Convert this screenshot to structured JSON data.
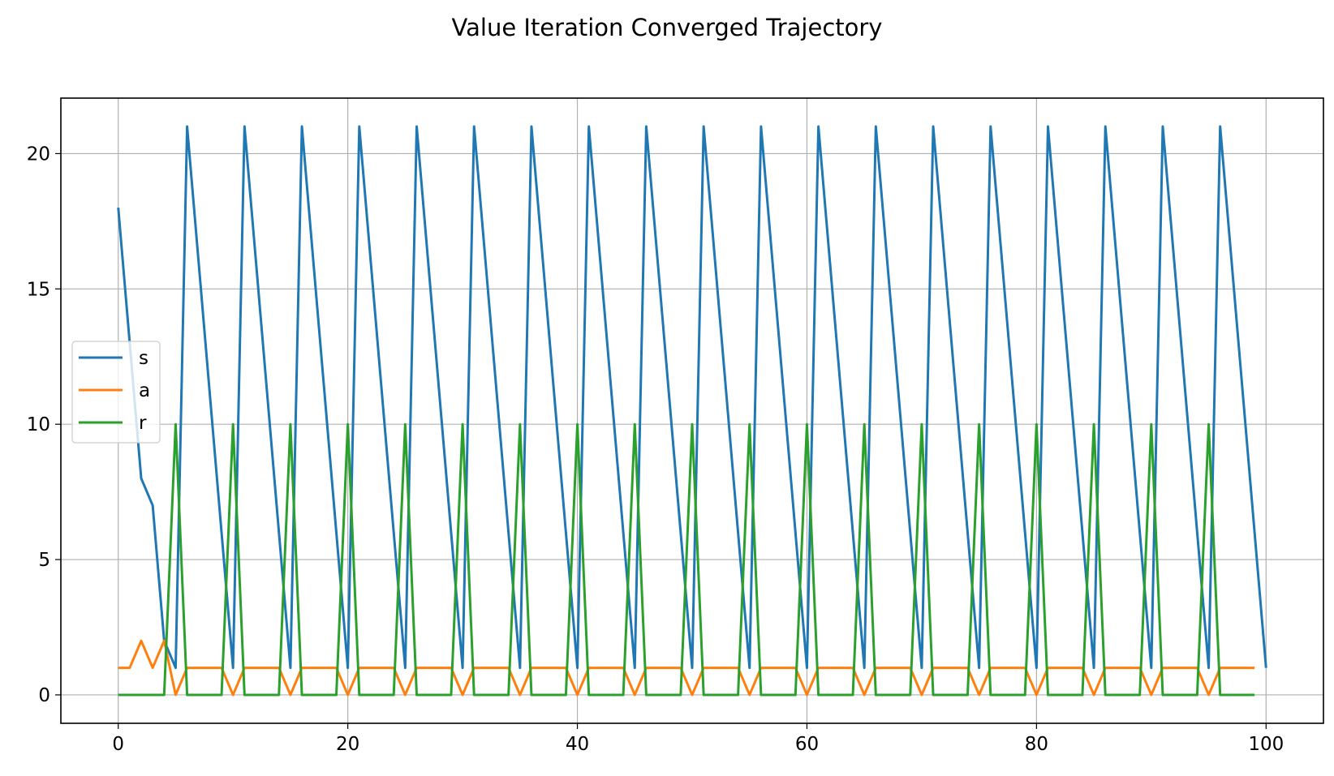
{
  "chart_data": {
    "type": "line",
    "title": "Value Iteration Converged Trajectory",
    "xlabel": "",
    "ylabel": "",
    "xlim": [
      -5,
      105
    ],
    "ylim": [
      -1.05,
      22.05
    ],
    "xticks": [
      0,
      20,
      40,
      60,
      80,
      100
    ],
    "yticks": [
      0,
      5,
      10,
      15,
      20
    ],
    "grid": true,
    "legend_position": "center-left",
    "series": [
      {
        "name": "s",
        "color": "#1f77b4",
        "x": [
          0,
          1,
          2,
          3,
          4,
          5,
          6,
          7,
          8,
          9,
          10,
          11,
          12,
          13,
          14,
          15,
          16,
          17,
          18,
          19,
          20,
          21,
          22,
          23,
          24,
          25,
          26,
          27,
          28,
          29,
          30,
          31,
          32,
          33,
          34,
          35,
          36,
          37,
          38,
          39,
          40,
          41,
          42,
          43,
          44,
          45,
          46,
          47,
          48,
          49,
          50,
          51,
          52,
          53,
          54,
          55,
          56,
          57,
          58,
          59,
          60,
          61,
          62,
          63,
          64,
          65,
          66,
          67,
          68,
          69,
          70,
          71,
          72,
          73,
          74,
          75,
          76,
          77,
          78,
          79,
          80,
          81,
          82,
          83,
          84,
          85,
          86,
          87,
          88,
          89,
          90,
          91,
          92,
          93,
          94,
          95,
          96,
          97,
          98,
          99,
          100
        ],
        "y": [
          18,
          13,
          8,
          7,
          2,
          1,
          21,
          16,
          11,
          6,
          1,
          21,
          16,
          11,
          6,
          1,
          21,
          16,
          11,
          6,
          1,
          21,
          16,
          11,
          6,
          1,
          21,
          16,
          11,
          6,
          1,
          21,
          16,
          11,
          6,
          1,
          21,
          16,
          11,
          6,
          1,
          21,
          16,
          11,
          6,
          1,
          21,
          16,
          11,
          6,
          1,
          21,
          16,
          11,
          6,
          1,
          21,
          16,
          11,
          6,
          1,
          21,
          16,
          11,
          6,
          1,
          21,
          16,
          11,
          6,
          1,
          21,
          16,
          11,
          6,
          1,
          21,
          16,
          11,
          6,
          1,
          21,
          16,
          11,
          6,
          1,
          21,
          16,
          11,
          6,
          1,
          21,
          16,
          11,
          6,
          1,
          21,
          16,
          11,
          6,
          1
        ]
      },
      {
        "name": "a",
        "color": "#ff7f0e",
        "x": [
          0,
          1,
          2,
          3,
          4,
          5,
          6,
          7,
          8,
          9,
          10,
          11,
          12,
          13,
          14,
          15,
          16,
          17,
          18,
          19,
          20,
          21,
          22,
          23,
          24,
          25,
          26,
          27,
          28,
          29,
          30,
          31,
          32,
          33,
          34,
          35,
          36,
          37,
          38,
          39,
          40,
          41,
          42,
          43,
          44,
          45,
          46,
          47,
          48,
          49,
          50,
          51,
          52,
          53,
          54,
          55,
          56,
          57,
          58,
          59,
          60,
          61,
          62,
          63,
          64,
          65,
          66,
          67,
          68,
          69,
          70,
          71,
          72,
          73,
          74,
          75,
          76,
          77,
          78,
          79,
          80,
          81,
          82,
          83,
          84,
          85,
          86,
          87,
          88,
          89,
          90,
          91,
          92,
          93,
          94,
          95,
          96,
          97,
          98,
          99
        ],
        "y": [
          1,
          1,
          2,
          1,
          2,
          0,
          1,
          1,
          1,
          1,
          0,
          1,
          1,
          1,
          1,
          0,
          1,
          1,
          1,
          1,
          0,
          1,
          1,
          1,
          1,
          0,
          1,
          1,
          1,
          1,
          0,
          1,
          1,
          1,
          1,
          0,
          1,
          1,
          1,
          1,
          0,
          1,
          1,
          1,
          1,
          0,
          1,
          1,
          1,
          1,
          0,
          1,
          1,
          1,
          1,
          0,
          1,
          1,
          1,
          1,
          0,
          1,
          1,
          1,
          1,
          0,
          1,
          1,
          1,
          1,
          0,
          1,
          1,
          1,
          1,
          0,
          1,
          1,
          1,
          1,
          0,
          1,
          1,
          1,
          1,
          0,
          1,
          1,
          1,
          1,
          0,
          1,
          1,
          1,
          1,
          0,
          1,
          1,
          1,
          1
        ]
      },
      {
        "name": "r",
        "color": "#2ca02c",
        "x": [
          0,
          1,
          2,
          3,
          4,
          5,
          6,
          7,
          8,
          9,
          10,
          11,
          12,
          13,
          14,
          15,
          16,
          17,
          18,
          19,
          20,
          21,
          22,
          23,
          24,
          25,
          26,
          27,
          28,
          29,
          30,
          31,
          32,
          33,
          34,
          35,
          36,
          37,
          38,
          39,
          40,
          41,
          42,
          43,
          44,
          45,
          46,
          47,
          48,
          49,
          50,
          51,
          52,
          53,
          54,
          55,
          56,
          57,
          58,
          59,
          60,
          61,
          62,
          63,
          64,
          65,
          66,
          67,
          68,
          69,
          70,
          71,
          72,
          73,
          74,
          75,
          76,
          77,
          78,
          79,
          80,
          81,
          82,
          83,
          84,
          85,
          86,
          87,
          88,
          89,
          90,
          91,
          92,
          93,
          94,
          95,
          96,
          97,
          98,
          99
        ],
        "y": [
          0,
          0,
          0,
          0,
          0,
          10,
          0,
          0,
          0,
          0,
          10,
          0,
          0,
          0,
          0,
          10,
          0,
          0,
          0,
          0,
          10,
          0,
          0,
          0,
          0,
          10,
          0,
          0,
          0,
          0,
          10,
          0,
          0,
          0,
          0,
          10,
          0,
          0,
          0,
          0,
          10,
          0,
          0,
          0,
          0,
          10,
          0,
          0,
          0,
          0,
          10,
          0,
          0,
          0,
          0,
          10,
          0,
          0,
          0,
          0,
          10,
          0,
          0,
          0,
          0,
          10,
          0,
          0,
          0,
          0,
          10,
          0,
          0,
          0,
          0,
          10,
          0,
          0,
          0,
          0,
          10,
          0,
          0,
          0,
          0,
          10,
          0,
          0,
          0,
          0,
          10,
          0,
          0,
          0,
          0,
          10,
          0,
          0,
          0,
          0
        ]
      }
    ]
  }
}
